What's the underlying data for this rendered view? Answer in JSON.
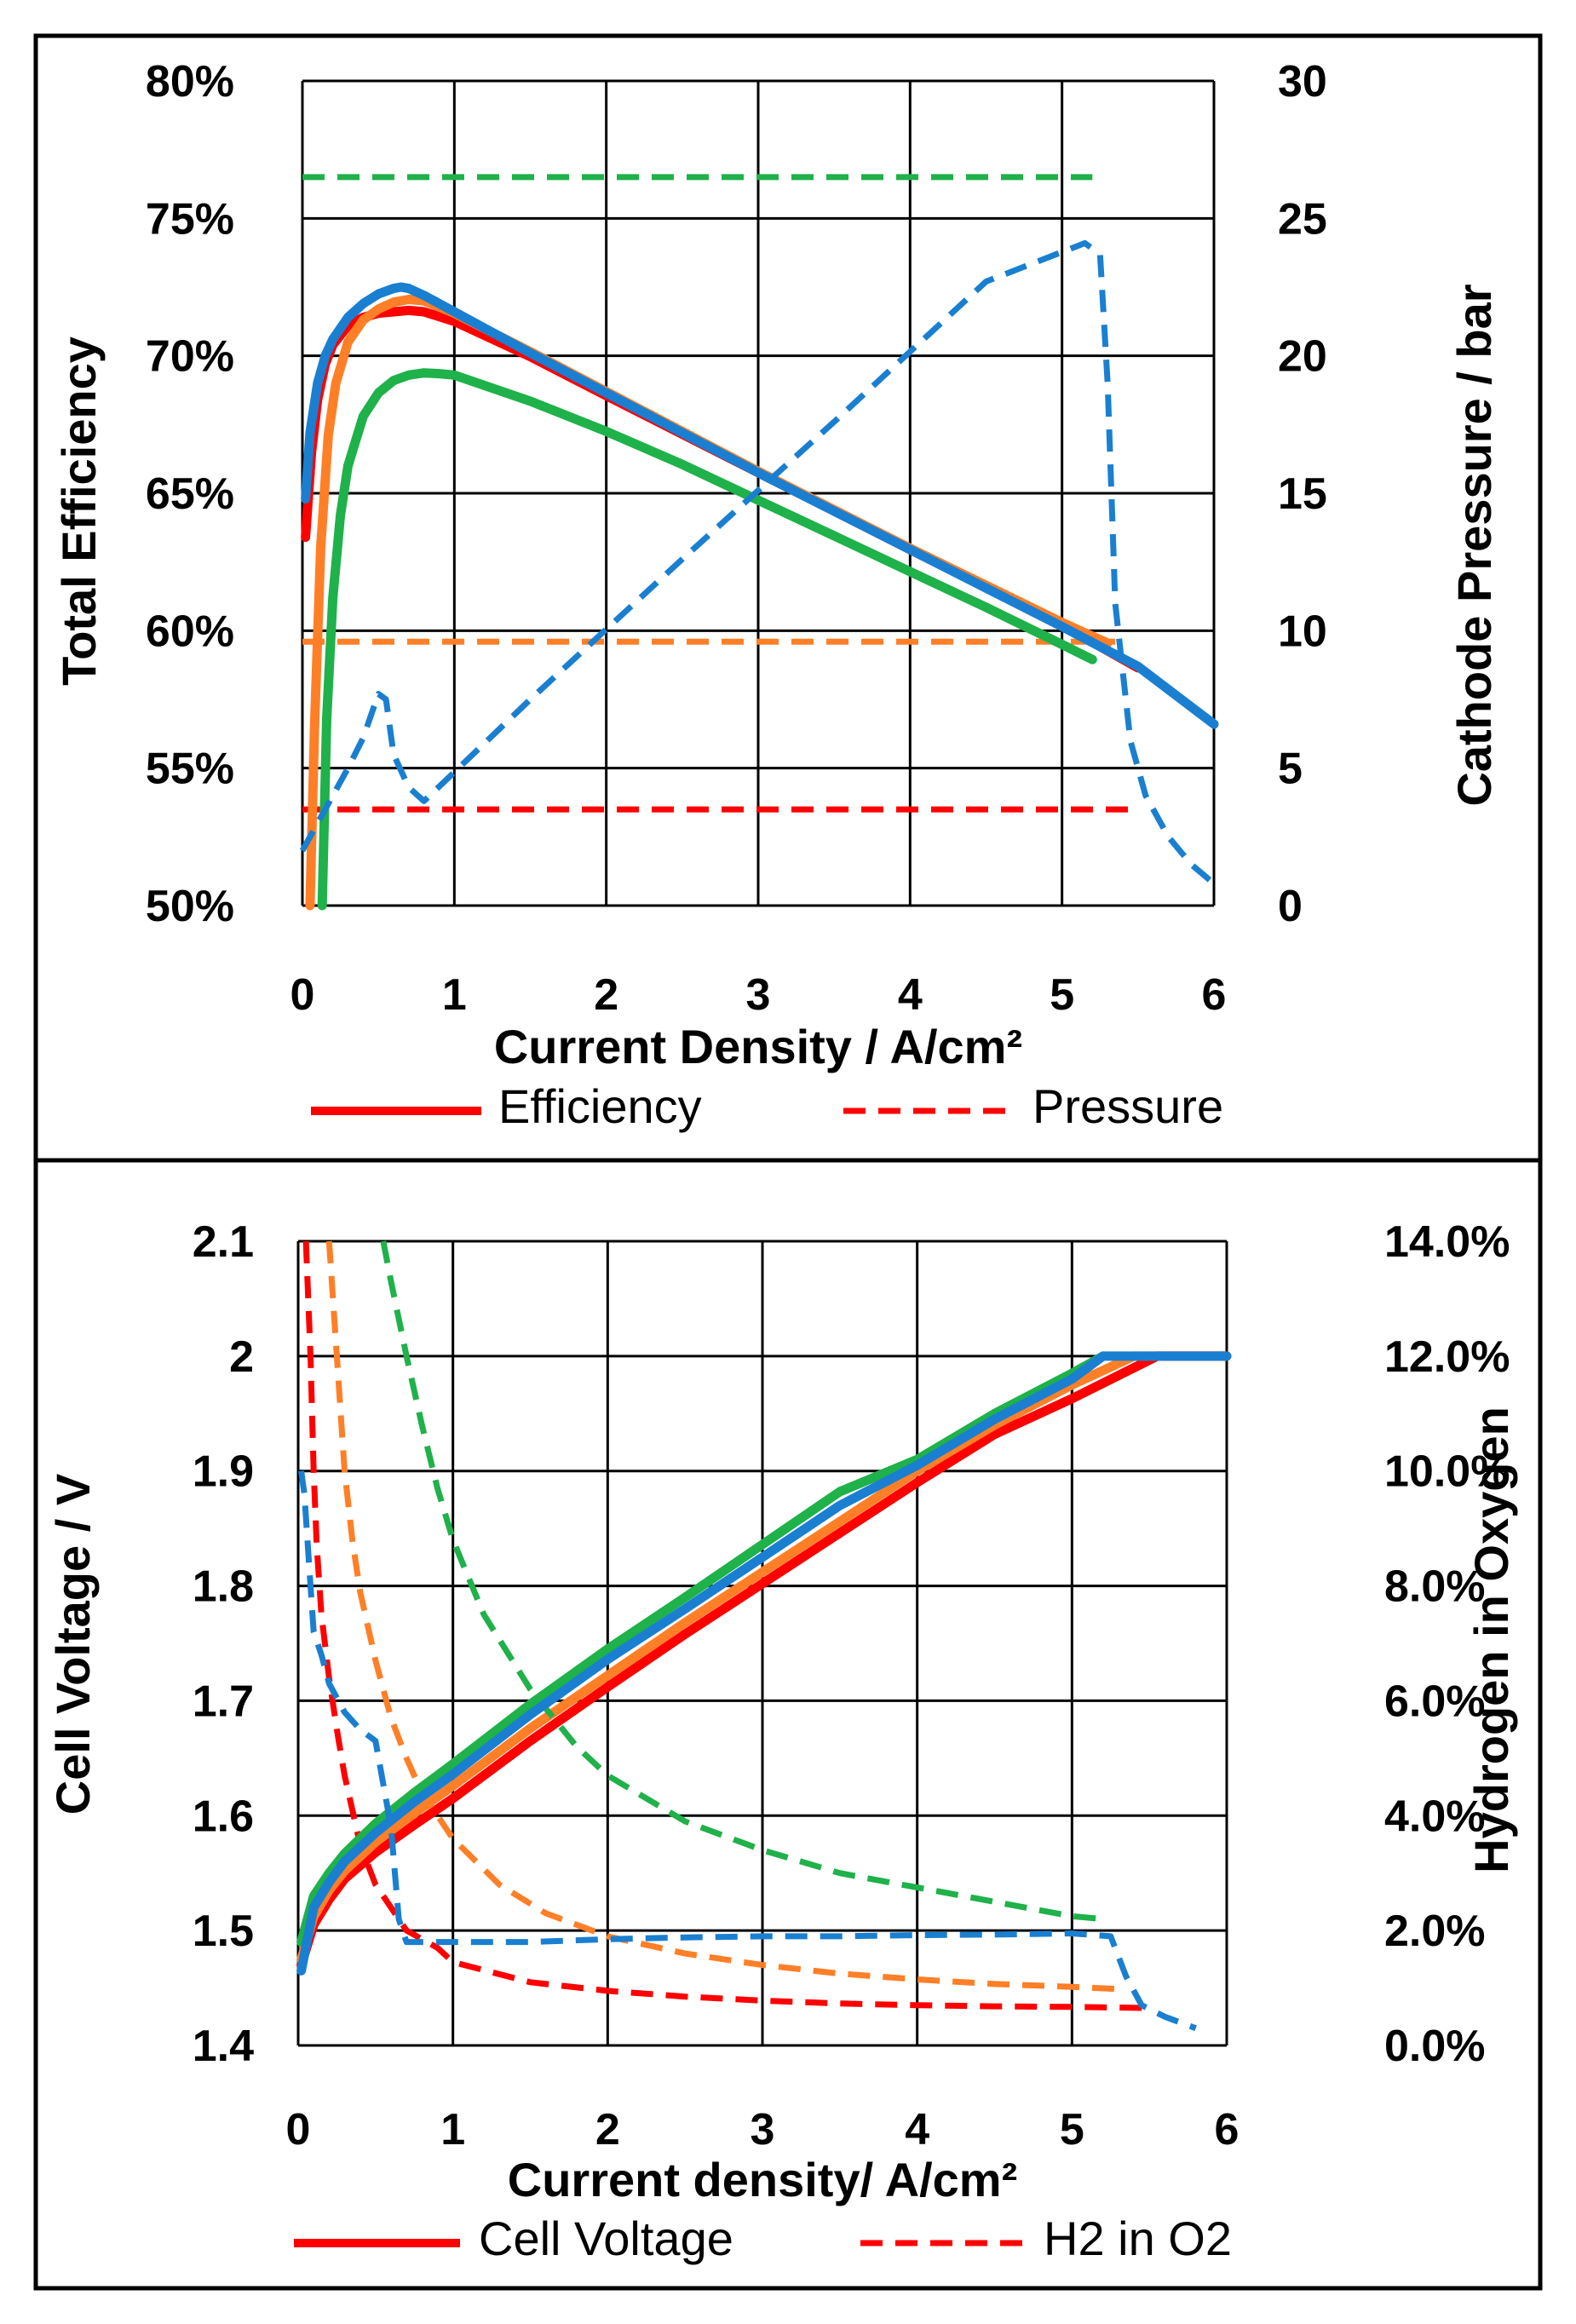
{
  "colors": {
    "red": "#ff0000",
    "orange": "#ff7f27",
    "green": "#1fb14a",
    "blue": "#1a7fd0",
    "grid": "#000000",
    "frame": "#000000"
  },
  "chart_data": [
    {
      "type": "line",
      "id": "top",
      "title": "",
      "xlabel": "Current Density / A/cm²",
      "ylabel": "Total Efficiency",
      "y2label": "Cathode Pressure / bar",
      "xlim": [
        0,
        6
      ],
      "ylim": [
        0.5,
        0.8
      ],
      "y2lim": [
        0,
        30
      ],
      "xticks": [
        "0",
        "1",
        "2",
        "3",
        "4",
        "5",
        "6"
      ],
      "yticks": [
        "50%",
        "55%",
        "60%",
        "65%",
        "70%",
        "75%",
        "80%"
      ],
      "y2ticks": [
        "0",
        "5",
        "10",
        "15",
        "20",
        "25",
        "30"
      ],
      "grid": true,
      "legend": [
        {
          "label": "Efficiency",
          "style": "solid",
          "color": "red"
        },
        {
          "label": "Pressure",
          "style": "dashed",
          "color": "red"
        }
      ],
      "series": [
        {
          "name": "Efficiency red",
          "color": "red",
          "style": "solid",
          "axis": "left",
          "x": [
            0.02,
            0.06,
            0.1,
            0.15,
            0.2,
            0.3,
            0.4,
            0.5,
            0.6,
            0.7,
            0.8,
            1.0,
            1.5,
            2.0,
            2.5,
            3.0,
            3.5,
            4.0,
            4.5,
            5.0,
            5.5
          ],
          "y": [
            0.634,
            0.665,
            0.684,
            0.697,
            0.704,
            0.711,
            0.714,
            0.7155,
            0.716,
            0.7165,
            0.716,
            0.7125,
            0.6997,
            0.6855,
            0.6715,
            0.6575,
            0.6435,
            0.6295,
            0.616,
            0.602,
            0.5865
          ]
        },
        {
          "name": "Pressure red",
          "color": "red",
          "style": "dashed",
          "axis": "right",
          "x": [
            0.0,
            5.5
          ],
          "y": [
            3.5,
            3.5
          ]
        },
        {
          "name": "Efficiency orange",
          "color": "orange",
          "style": "solid",
          "axis": "left",
          "x": [
            0.05,
            0.08,
            0.12,
            0.17,
            0.22,
            0.3,
            0.4,
            0.5,
            0.6,
            0.7,
            0.8,
            1.0,
            1.5,
            2.0,
            2.5,
            3.0,
            3.5,
            4.0,
            4.5,
            5.0,
            5.3
          ],
          "y": [
            0.5,
            0.566,
            0.63,
            0.671,
            0.69,
            0.705,
            0.713,
            0.717,
            0.7195,
            0.7205,
            0.72,
            0.7155,
            0.7015,
            0.687,
            0.6725,
            0.658,
            0.644,
            0.63,
            0.6165,
            0.603,
            0.5955
          ]
        },
        {
          "name": "Pressure orange",
          "color": "orange",
          "style": "dashed",
          "axis": "right",
          "x": [
            0.0,
            5.35
          ],
          "y": [
            9.6,
            9.6
          ]
        },
        {
          "name": "Efficiency green",
          "color": "green",
          "style": "solid",
          "axis": "left",
          "x": [
            0.13,
            0.16,
            0.2,
            0.25,
            0.3,
            0.4,
            0.5,
            0.6,
            0.7,
            0.8,
            0.9,
            1.0,
            1.5,
            2.0,
            2.5,
            3.0,
            3.5,
            4.0,
            4.5,
            5.0,
            5.2
          ],
          "y": [
            0.5,
            0.568,
            0.612,
            0.642,
            0.66,
            0.678,
            0.6865,
            0.691,
            0.693,
            0.6938,
            0.6935,
            0.693,
            0.6835,
            0.6725,
            0.6605,
            0.6475,
            0.6345,
            0.6215,
            0.6085,
            0.595,
            0.5895
          ]
        },
        {
          "name": "Pressure green",
          "color": "green",
          "style": "dashed",
          "axis": "right",
          "x": [
            0.0,
            5.2
          ],
          "y": [
            26.5,
            26.5
          ]
        },
        {
          "name": "Efficiency blue",
          "color": "blue",
          "style": "solid",
          "axis": "left",
          "x": [
            0.02,
            0.05,
            0.1,
            0.15,
            0.2,
            0.3,
            0.4,
            0.5,
            0.6,
            0.65,
            0.7,
            0.8,
            1.0,
            1.5,
            2.0,
            2.5,
            3.0,
            3.5,
            4.0,
            4.5,
            5.0,
            5.5,
            6.0
          ],
          "y": [
            0.648,
            0.672,
            0.69,
            0.7,
            0.706,
            0.714,
            0.719,
            0.7225,
            0.7245,
            0.725,
            0.7245,
            0.722,
            0.716,
            0.701,
            0.6865,
            0.672,
            0.6575,
            0.6435,
            0.6295,
            0.6155,
            0.6015,
            0.587,
            0.566
          ]
        },
        {
          "name": "Pressure blue",
          "color": "blue",
          "style": "dashed",
          "axis": "right",
          "x": [
            0.0,
            0.1,
            0.2,
            0.3,
            0.4,
            0.5,
            0.55,
            0.6,
            0.7,
            0.8,
            1.5,
            2.5,
            3.5,
            4.5,
            5.15,
            5.25,
            5.3,
            5.35,
            5.45,
            5.55,
            5.7,
            5.85,
            6.0
          ],
          "y": [
            2.0,
            3.0,
            4.0,
            5.0,
            6.1,
            7.7,
            7.5,
            5.5,
            4.3,
            3.8,
            7.5,
            12.6,
            17.6,
            22.7,
            24.1,
            23.7,
            19.0,
            11.0,
            6.0,
            4.0,
            2.5,
            1.5,
            0.8
          ]
        }
      ]
    },
    {
      "type": "line",
      "id": "bottom",
      "title": "",
      "xlabel": "Current density/ A/cm²",
      "ylabel": "Cell Voltage / V",
      "y2label": "Hydrogen in Oxygen",
      "xlim": [
        0,
        6
      ],
      "ylim": [
        1.4,
        2.1
      ],
      "y2lim": [
        0.0,
        0.14
      ],
      "xticks": [
        "0",
        "1",
        "2",
        "3",
        "4",
        "5",
        "6"
      ],
      "yticks": [
        "1.4",
        "1.5",
        "1.6",
        "1.7",
        "1.8",
        "1.9",
        "2",
        "2.1"
      ],
      "y2ticks": [
        "0.0%",
        "2.0%",
        "4.0%",
        "6.0%",
        "8.0%",
        "10.0%",
        "12.0%",
        "14.0%"
      ],
      "grid": true,
      "legend": [
        {
          "label": "Cell Voltage",
          "style": "solid",
          "color": "red"
        },
        {
          "label": "H2 in O2",
          "style": "dashed",
          "color": "red"
        }
      ],
      "series": [
        {
          "name": "Voltage red",
          "color": "red",
          "style": "solid",
          "axis": "left",
          "x": [
            0.02,
            0.1,
            0.2,
            0.3,
            0.5,
            0.75,
            1.0,
            1.5,
            2.0,
            2.5,
            3.0,
            3.5,
            4.0,
            4.5,
            5.0,
            5.55,
            6.0
          ],
          "y": [
            1.47,
            1.505,
            1.527,
            1.545,
            1.568,
            1.592,
            1.615,
            1.665,
            1.712,
            1.758,
            1.802,
            1.846,
            1.89,
            1.932,
            1.963,
            2.0,
            2.0
          ]
        },
        {
          "name": "H2 in O2 red",
          "color": "red",
          "style": "dashed",
          "axis": "right",
          "x": [
            0.05,
            0.08,
            0.1,
            0.12,
            0.15,
            0.2,
            0.25,
            0.3,
            0.4,
            0.5,
            0.7,
            0.9,
            1.0,
            1.5,
            2.0,
            2.5,
            3.0,
            3.5,
            4.0,
            4.5,
            5.0,
            5.3,
            5.5
          ],
          "y": [
            0.14,
            0.12,
            0.1,
            0.087,
            0.075,
            0.064,
            0.055,
            0.047,
            0.035,
            0.028,
            0.02,
            0.017,
            0.0145,
            0.011,
            0.0095,
            0.0085,
            0.0078,
            0.0073,
            0.007,
            0.0068,
            0.0067,
            0.0066,
            0.0065
          ]
        },
        {
          "name": "Voltage orange",
          "color": "orange",
          "style": "solid",
          "axis": "left",
          "x": [
            0.02,
            0.1,
            0.2,
            0.3,
            0.5,
            0.75,
            1.0,
            1.5,
            2.0,
            2.5,
            3.0,
            3.5,
            4.0,
            4.5,
            5.0,
            5.4,
            6.0
          ],
          "y": [
            1.475,
            1.512,
            1.535,
            1.552,
            1.577,
            1.602,
            1.626,
            1.676,
            1.722,
            1.768,
            1.812,
            1.856,
            1.9,
            1.94,
            1.975,
            2.0,
            2.0
          ]
        },
        {
          "name": "H2 in O2 orange",
          "color": "orange",
          "style": "dashed",
          "axis": "right",
          "x": [
            0.2,
            0.25,
            0.3,
            0.35,
            0.4,
            0.5,
            0.6,
            0.7,
            0.8,
            1.0,
            1.3,
            1.6,
            2.0,
            2.5,
            3.0,
            3.5,
            4.0,
            4.5,
            5.0,
            5.3
          ],
          "y": [
            0.14,
            0.12,
            0.1,
            0.088,
            0.079,
            0.067,
            0.057,
            0.05,
            0.044,
            0.036,
            0.028,
            0.023,
            0.019,
            0.016,
            0.014,
            0.0125,
            0.0115,
            0.0107,
            0.0102,
            0.0098
          ]
        },
        {
          "name": "Voltage green",
          "color": "green",
          "style": "solid",
          "axis": "left",
          "x": [
            0.02,
            0.1,
            0.2,
            0.3,
            0.5,
            0.75,
            1.0,
            1.5,
            2.0,
            2.5,
            3.0,
            3.5,
            4.0,
            4.5,
            5.0,
            5.2
          ],
          "y": [
            1.49,
            1.53,
            1.55,
            1.567,
            1.593,
            1.62,
            1.645,
            1.697,
            1.745,
            1.79,
            1.836,
            1.882,
            1.91,
            1.95,
            1.985,
            2.0
          ]
        },
        {
          "name": "H2 in O2 green",
          "color": "green",
          "style": "dashed",
          "axis": "right",
          "x": [
            0.55,
            0.6,
            0.7,
            0.8,
            0.9,
            1.0,
            1.2,
            1.5,
            1.8,
            2.0,
            2.5,
            3.0,
            3.5,
            4.0,
            4.5,
            5.0,
            5.2
          ],
          "y": [
            0.14,
            0.133,
            0.12,
            0.108,
            0.097,
            0.088,
            0.075,
            0.062,
            0.052,
            0.047,
            0.039,
            0.034,
            0.03,
            0.0275,
            0.025,
            0.0225,
            0.022
          ]
        },
        {
          "name": "Voltage blue",
          "color": "blue",
          "style": "solid",
          "axis": "left",
          "x": [
            0.02,
            0.1,
            0.2,
            0.3,
            0.5,
            0.75,
            1.0,
            1.5,
            2.0,
            2.5,
            3.0,
            3.5,
            4.0,
            4.5,
            5.0,
            5.2,
            6.0
          ],
          "y": [
            1.465,
            1.52,
            1.542,
            1.56,
            1.585,
            1.612,
            1.636,
            1.688,
            1.736,
            1.78,
            1.825,
            1.87,
            1.905,
            1.945,
            1.98,
            2.0,
            2.0
          ]
        },
        {
          "name": "H2 in O2 blue",
          "color": "blue",
          "style": "dashed",
          "axis": "right",
          "x": [
            0.02,
            0.04,
            0.06,
            0.08,
            0.1,
            0.15,
            0.2,
            0.3,
            0.4,
            0.5,
            0.6,
            0.65,
            0.7,
            0.8,
            1.0,
            1.5,
            2.0,
            2.5,
            3.0,
            3.5,
            4.0,
            4.5,
            5.0,
            5.25,
            5.35,
            5.45,
            5.6,
            5.8
          ],
          "y": [
            0.1,
            0.096,
            0.088,
            0.08,
            0.072,
            0.068,
            0.063,
            0.058,
            0.055,
            0.053,
            0.038,
            0.022,
            0.018,
            0.018,
            0.018,
            0.018,
            0.0185,
            0.0188,
            0.019,
            0.019,
            0.0192,
            0.0193,
            0.0195,
            0.019,
            0.012,
            0.007,
            0.005,
            0.003
          ]
        }
      ]
    }
  ]
}
